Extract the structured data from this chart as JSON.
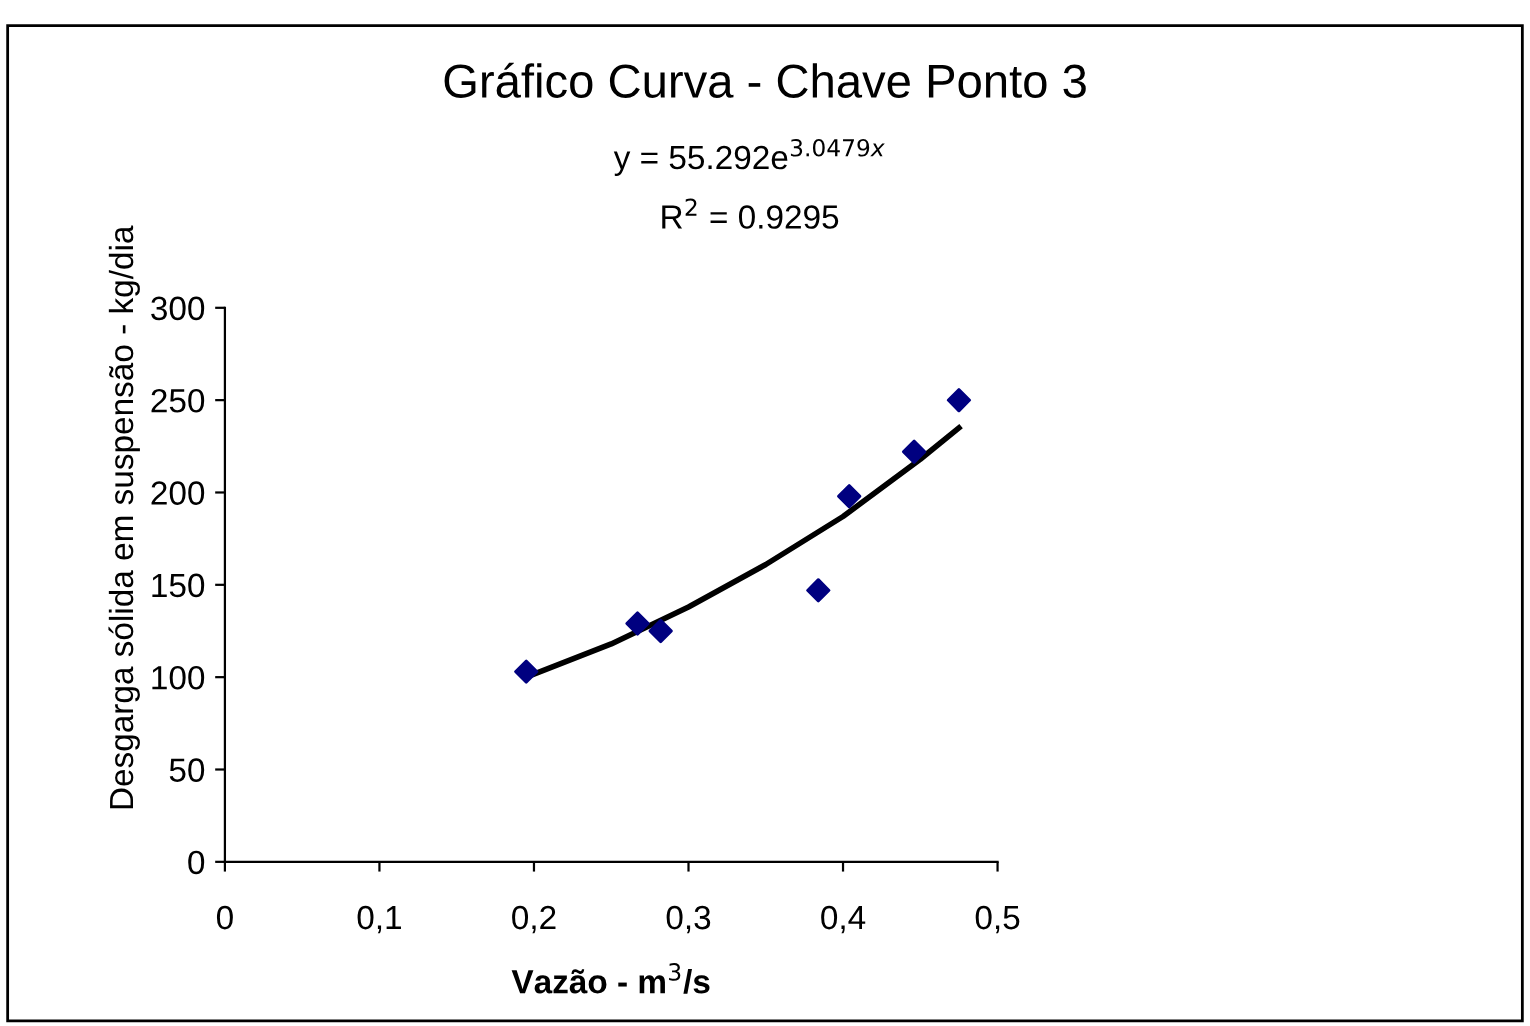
{
  "chart_data": {
    "type": "scatter",
    "title": "Gráfico Curva - Chave Ponto 3",
    "annotations": [
      "y = 55.292e$^{3.0479x}$",
      "R$^{2}$ = 0.9295"
    ],
    "xlabel": "Vazão - m$^{3}$/s",
    "ylabel": "Desgarga sólida em suspensão - kg/dia",
    "series": [
      {
        "color": "#000080",
        "marker": "diamond",
        "x": [
          0.195,
          0.267,
          0.282,
          0.384,
          0.404,
          0.446,
          0.475
        ],
        "values": [
          103,
          129,
          125,
          147,
          198,
          222,
          250
        ]
      },
      {
        "type": "line",
        "color": "#000000",
        "marker": "none",
        "x": [
          0.195,
          0.25,
          0.3,
          0.35,
          0.4,
          0.45,
          0.475
        ],
        "values": [
          100,
          118,
          138,
          161,
          187,
          218,
          235
        ]
      }
    ],
    "xlim": [
      0,
      0.5
    ],
    "ylim": [
      0,
      300
    ],
    "xticks": [
      0,
      {
        "value": 0.1,
        "label": "0,1"
      },
      {
        "value": 0.2,
        "label": "0,2"
      },
      {
        "value": 0.3,
        "label": "0,3"
      },
      {
        "value": 0.4,
        "label": "0,4"
      },
      {
        "value": 0.5,
        "label": "0,5"
      }
    ],
    "yticks": [
      0,
      50,
      100,
      150,
      200,
      250,
      300
    ],
    "grid": false,
    "legend": false
  }
}
